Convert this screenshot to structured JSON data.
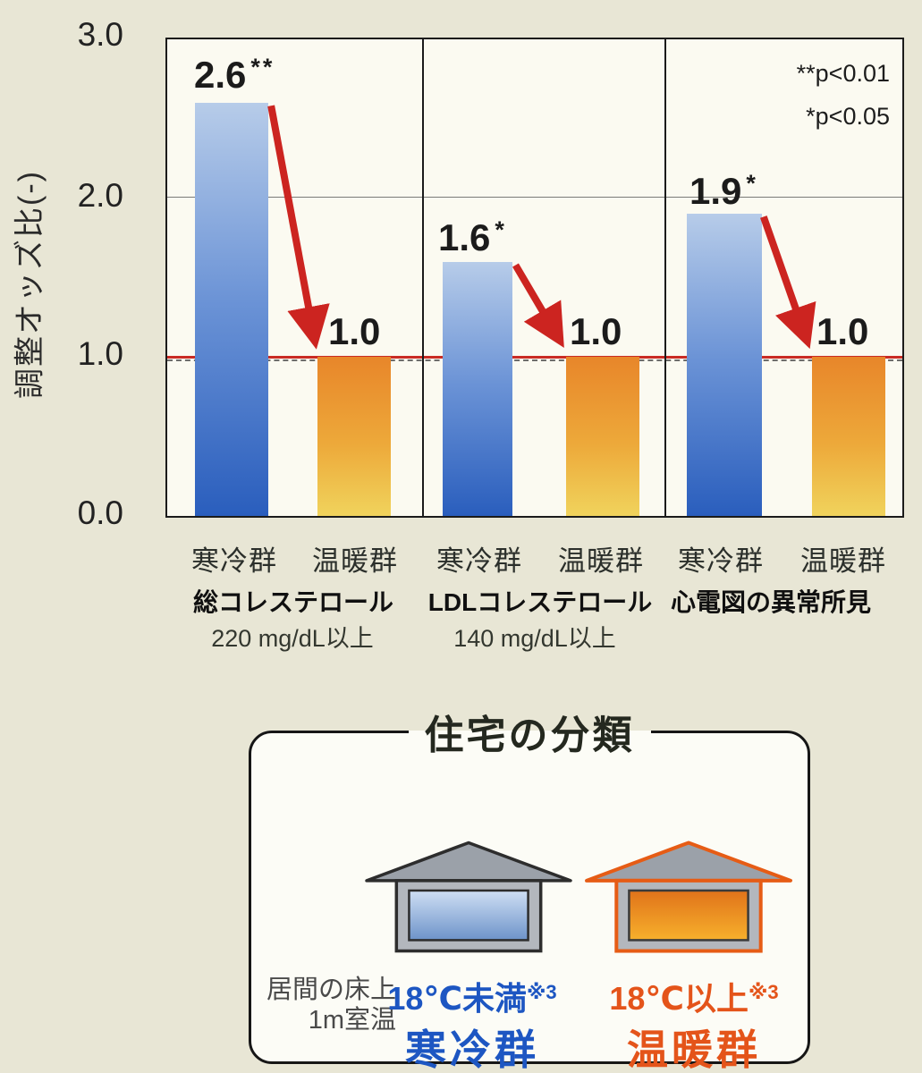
{
  "chart_data": {
    "type": "bar",
    "ylabel": "調整オッズ比(-)",
    "ylim": [
      0,
      3.0
    ],
    "yticks": [
      "3.0",
      "2.0",
      "1.0",
      "0.0"
    ],
    "gridline_at": 2.0,
    "reference_line_at": 1.0,
    "categories": [
      "寒冷群",
      "温暖群"
    ],
    "significance_legend": [
      "**p<0.01",
      "*p<0.05"
    ],
    "groups": [
      {
        "condition": "総コレステロール",
        "threshold": "220 mg/dL以上",
        "values": {
          "cold": 2.6,
          "warm": 1.0
        },
        "labels": {
          "cold": "2.6",
          "warm": "1.0"
        },
        "significance": "**"
      },
      {
        "condition": "LDLコレステロール",
        "threshold": "140 mg/dL以上",
        "values": {
          "cold": 1.6,
          "warm": 1.0
        },
        "labels": {
          "cold": "1.6",
          "warm": "1.0"
        },
        "significance": "*"
      },
      {
        "condition": "心電図の異常所見",
        "threshold": "",
        "values": {
          "cold": 1.9,
          "warm": 1.0
        },
        "labels": {
          "cold": "1.9",
          "warm": "1.0"
        },
        "significance": "*"
      }
    ]
  },
  "housing_legend": {
    "title": "住宅の分類",
    "measure": {
      "line1": "居間の床上",
      "line2": "1m室温"
    },
    "cold": {
      "temperature": "18℃未満",
      "note": "※3",
      "group": "寒冷群"
    },
    "warm": {
      "temperature": "18℃以上",
      "note": "※3",
      "group": "温暖群"
    }
  },
  "colors": {
    "background": "#e8e6d5",
    "plot_background": "#fbfaf1",
    "cold_bar_top": "#b7cce9",
    "cold_bar_bottom": "#2a5ebd",
    "warm_bar_top": "#e8862a",
    "warm_bar_bottom": "#f0d35c",
    "arrow_red": "#cc2420",
    "reference_line_red": "#c92b24",
    "cold_text": "#1d56c2",
    "warm_text": "#e4541a"
  }
}
